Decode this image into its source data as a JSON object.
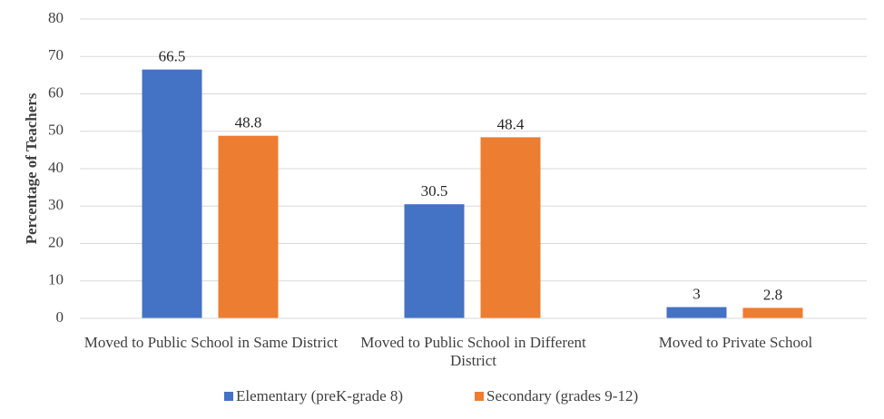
{
  "chart_data": {
    "type": "bar",
    "y_label": "Percentage of Teachers",
    "categories": [
      "Moved to Public School in Same District",
      "Moved to Public School in Different District",
      "Moved to Private School"
    ],
    "series": [
      {
        "name": "Elementary (preK-grade 8)",
        "color": "#4472c4",
        "values": [
          66.5,
          30.5,
          3
        ]
      },
      {
        "name": "Secondary (grades 9-12)",
        "color": "#ed7d31",
        "values": [
          48.8,
          48.4,
          2.8
        ]
      }
    ],
    "ylim": [
      0,
      80
    ],
    "yticks": [
      0,
      10,
      20,
      30,
      40,
      50,
      60,
      70,
      80
    ],
    "grid": true,
    "legend": "bottom"
  }
}
